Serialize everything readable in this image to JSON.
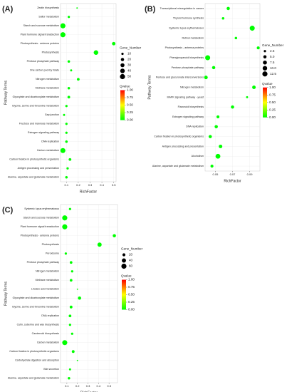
{
  "chart_data": [
    {
      "type": "scatter",
      "panel_label": "(A)",
      "y_label": "Pathway Terms",
      "x_label": "RichFactor",
      "categories": [
        "Zeatin biosynthesis",
        "Sulfur metabolism",
        "Starch and sucrose metabolism",
        "Plant hormone signal transduction",
        "Photosynthesis - antenna proteins",
        "Photosynthesis",
        "Pentose phosphate pathway",
        "One carbon pool by folate",
        "Nitrogen metabolism",
        "Methane metabolism",
        "Glyoxylate and dicarboxylate metabolism",
        "Glycine, serine and threonine metabolism",
        "Gap junction",
        "Fructose and mannose metabolism",
        "Estrogen signaling pathway",
        "DNA replication",
        "Carbon metabolism",
        "Carbon fixation in photosynthetic organisms",
        "Antigen processing and presentation",
        "Alanine, aspartate and glutamate metabolism"
      ],
      "x": [
        0.19,
        0.12,
        0.07,
        0.07,
        0.5,
        0.35,
        0.12,
        0.14,
        0.2,
        0.12,
        0.12,
        0.1,
        0.08,
        0.1,
        0.1,
        0.1,
        0.07,
        0.13,
        0.11,
        0.1
      ],
      "gene_number": [
        4,
        10,
        50,
        50,
        22,
        40,
        12,
        8,
        14,
        12,
        14,
        10,
        8,
        10,
        10,
        12,
        48,
        14,
        10,
        12
      ],
      "qvalue": [
        0,
        0,
        0,
        0,
        0,
        0,
        0,
        0,
        0,
        0,
        0,
        0,
        0,
        0,
        0,
        0,
        0,
        0,
        0,
        0
      ],
      "xlim": [
        0.05,
        0.52
      ],
      "xticks": [
        0.1,
        0.2,
        0.3,
        0.4,
        0.5
      ],
      "size_title": "Gene_Number",
      "size_ticks": [
        10,
        20,
        30,
        40,
        50
      ],
      "color_title": "Qvalue",
      "qlim": [
        0,
        1
      ],
      "qticks": [
        {
          "value": 0,
          "label": "0.00"
        },
        {
          "value": 0.25,
          "label": "0.25"
        },
        {
          "value": 0.5,
          "label": "0.50"
        },
        {
          "value": 0.75,
          "label": "0.75"
        },
        {
          "value": 1,
          "label": "1.00"
        }
      ],
      "colors": [
        "#00ff00",
        "#ffff00",
        "#ff0000"
      ],
      "grid": true
    },
    {
      "type": "scatter",
      "panel_label": "(B)",
      "y_label": "Pathway Terms",
      "x_label": "RichFactor",
      "categories": [
        "Transcriptional misregulation in cancer",
        "Thyroid hormone synthesis",
        "Systemic lupus erythematosus",
        "Retinol metabolism",
        "Photosynthesis - antenna proteins",
        "Phenylpropanoid biosynthesis",
        "Pentose phosphate pathway",
        "Pentose and glucuronate interconversions",
        "Nitrogen metabolism",
        "MAPK signaling pathway - yeast",
        "Flavonoid biosynthesis",
        "Estrogen signaling pathway",
        "DNA replication",
        "Carbon fixation in photosynthetic organisms",
        "Antigen processing and presentation",
        "Alcoholism",
        "Alanine, aspartate and glutamate metabolism"
      ],
      "x": [
        0.065,
        0.059,
        0.093,
        0.074,
        0.1,
        0.041,
        0.048,
        0.039,
        0.095,
        0.087,
        0.07,
        0.053,
        0.051,
        0.044,
        0.056,
        0.053,
        0.046
      ],
      "gene_number": [
        5,
        3,
        12,
        3,
        4,
        12,
        5,
        6,
        6,
        2,
        5,
        4,
        5,
        5,
        6,
        11,
        4
      ],
      "qvalue": [
        0,
        0,
        0,
        0,
        0,
        0,
        0,
        0,
        0,
        0,
        0,
        0,
        0,
        0,
        0,
        0,
        0
      ],
      "xlim": [
        0.038,
        0.102
      ],
      "xticks": [
        0.05,
        0.07,
        0.09
      ],
      "size_title": "Gene_Number",
      "size_ticks": [
        2.5,
        {
          "value": 5,
          "label": "5.0"
        },
        7.5,
        {
          "value": 10,
          "label": "10.0"
        },
        12.5
      ],
      "color_title": "Qvalue",
      "qlim": [
        0,
        1
      ],
      "qticks": [
        {
          "value": 0,
          "label": "0.00"
        },
        {
          "value": 0.25,
          "label": "0.25"
        },
        {
          "value": 0.5,
          "label": "0.50"
        },
        {
          "value": 0.75,
          "label": "0.75"
        },
        {
          "value": 1,
          "label": "1.00"
        }
      ],
      "colors": [
        "#00ff00",
        "#ffff00",
        "#ff0000"
      ],
      "grid": true
    },
    {
      "type": "scatter",
      "panel_label": "(C)",
      "y_label": "Pathway Terms",
      "x_label": "RichFactor",
      "categories": [
        "Systemic lupus erythematosus",
        "Starch and sucrose metabolism",
        "Plant hormone signal transduction",
        "Photosynthesis - antenna proteins",
        "Photosynthesis",
        "Peroxisome",
        "Pentose phosphate pathway",
        "Nitrogen metabolism",
        "Methane metabolism",
        "Linoleic acid metabolism",
        "Glyoxylate and dicarboxylate metabolism",
        "Glycine, serine and threonine metabolism",
        "DNA replication",
        "Cutin, suberine and wax biosynthesis",
        "Carotenoid biosynthesis",
        "Carbon metabolism",
        "Carbon fixation in photosynthetic organisms",
        "Carbohydrate digestion and absorption",
        "Bile secretion",
        "Alanine, aspartate and glutamate metabolism"
      ],
      "x": [
        0.13,
        0.08,
        0.08,
        0.55,
        0.41,
        0.09,
        0.14,
        0.15,
        0.14,
        0.2,
        0.22,
        0.14,
        0.13,
        0.13,
        0.15,
        0.08,
        0.16,
        0.2,
        0.13,
        0.12
      ],
      "gene_number": [
        12,
        60,
        60,
        24,
        40,
        12,
        16,
        12,
        16,
        4,
        24,
        18,
        16,
        12,
        12,
        58,
        18,
        4,
        10,
        14
      ],
      "qvalue": [
        0,
        0,
        0,
        0,
        0,
        0,
        0,
        0,
        0,
        0,
        0,
        0,
        0,
        0,
        0,
        0,
        0,
        0,
        0,
        0
      ],
      "xlim": [
        0.04,
        0.58
      ],
      "xticks": [
        0.1,
        0.2,
        0.3,
        0.4,
        0.5
      ],
      "size_title": "Gene_Number",
      "size_ticks": [
        20,
        40,
        60
      ],
      "color_title": "Qvalue",
      "qlim": [
        0,
        1
      ],
      "qticks": [
        {
          "value": 0,
          "label": "0.00"
        },
        {
          "value": 0.25,
          "label": "0.25"
        },
        {
          "value": 0.5,
          "label": "0.50"
        },
        {
          "value": 0.75,
          "label": "0.75"
        },
        {
          "value": 1,
          "label": "1.00"
        }
      ],
      "colors": [
        "#00ff00",
        "#ffff00",
        "#ff0000"
      ],
      "grid": true
    }
  ]
}
